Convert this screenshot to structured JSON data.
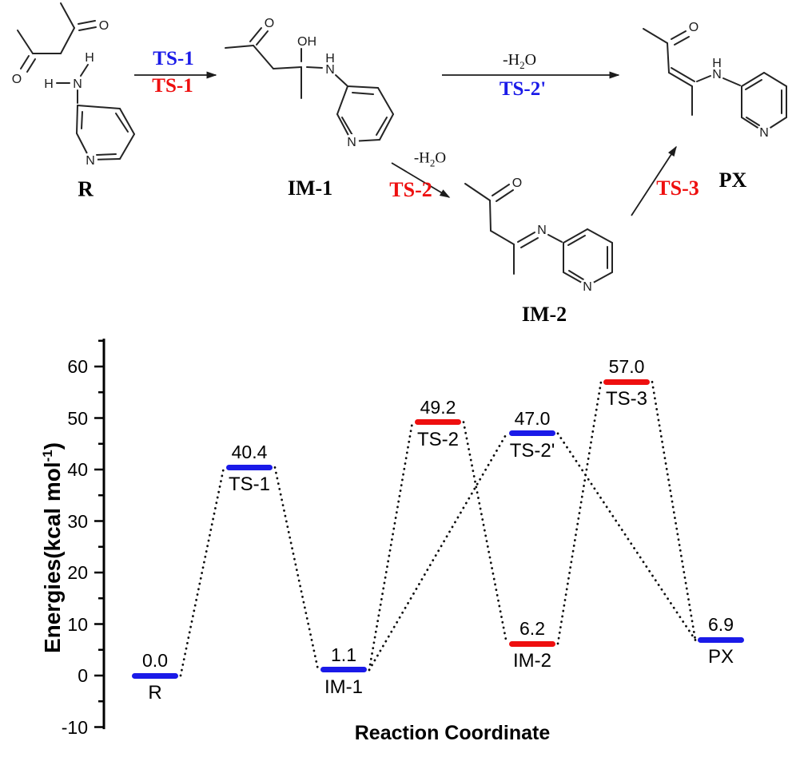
{
  "colors": {
    "blue": "#1a1ae8",
    "red": "#ee0f0f",
    "black": "#000000"
  },
  "scheme": {
    "structures": {
      "r": {
        "label": "R",
        "atoms": {
          "o_top": "O",
          "o_left": "O",
          "h_top": "H",
          "h_left": "H",
          "n_amine": "N",
          "n_ring": "N"
        }
      },
      "im1": {
        "label": "IM-1",
        "atoms": {
          "o": "O",
          "oh": "OH",
          "h": "H",
          "n_amine": "N",
          "n_ring": "N"
        }
      },
      "im2": {
        "label": "IM-2",
        "atoms": {
          "o": "O",
          "n_imine": "N",
          "n_ring": "N"
        }
      },
      "px": {
        "label": "PX",
        "atoms": {
          "o": "O",
          "h": "H",
          "n_amine": "N",
          "n_ring": "N"
        }
      }
    },
    "arrows": {
      "step1": {
        "top": "TS-1",
        "bottom": "TS-1"
      },
      "step2": {
        "water_prefix": "-H",
        "water_sub": "2",
        "water_suffix": "O",
        "bottom": "TS-2'"
      },
      "step2b": {
        "water_prefix": "-H",
        "water_sub": "2",
        "water_suffix": "O",
        "ts": "TS-2"
      },
      "step3": {
        "ts": "TS-3"
      }
    }
  },
  "chart_data": {
    "type": "line",
    "subtype": "reaction-energy-profile",
    "title": "",
    "xlabel": "Reaction Coordinate",
    "ylabel": "Energies(kcal mol-1)",
    "ylabel_prefix": "Energies(kcal mol",
    "ylabel_sup": "-1",
    "ylabel_suffix": ")",
    "ylim": [
      -10,
      65
    ],
    "yticks_major": [
      60,
      50,
      40,
      30,
      20,
      10,
      0,
      -10
    ],
    "yticks_minor": [
      65,
      55,
      45,
      35,
      25,
      15,
      5,
      -5
    ],
    "grid": false,
    "legend": null,
    "levels": [
      {
        "name": "R",
        "energy": 0.0,
        "label": "0.0",
        "color": "blue",
        "slot": 0
      },
      {
        "name": "TS-1",
        "energy": 40.4,
        "label": "40.4",
        "color": "blue",
        "slot": 1
      },
      {
        "name": "IM-1",
        "energy": 1.1,
        "label": "1.1",
        "color": "blue",
        "slot": 2
      },
      {
        "name": "TS-2",
        "energy": 49.2,
        "label": "49.2",
        "color": "red",
        "slot": 3
      },
      {
        "name": "TS-2'",
        "energy": 47.0,
        "label": "47.0",
        "color": "blue",
        "slot": 4
      },
      {
        "name": "IM-2",
        "energy": 6.2,
        "label": "6.2",
        "color": "red",
        "slot": 4
      },
      {
        "name": "TS-3",
        "energy": 57.0,
        "label": "57.0",
        "color": "red",
        "slot": 5
      },
      {
        "name": "PX",
        "energy": 6.9,
        "label": "6.9",
        "color": "blue",
        "slot": 6
      }
    ],
    "connectors": [
      [
        0,
        1
      ],
      [
        1,
        2
      ],
      [
        2,
        3
      ],
      [
        2,
        4
      ],
      [
        3,
        5
      ],
      [
        4,
        7
      ],
      [
        5,
        6
      ],
      [
        6,
        7
      ]
    ],
    "pathways": {
      "blue": [
        "R",
        "TS-1",
        "IM-1",
        "TS-2'",
        "PX"
      ],
      "red": [
        "R",
        "TS-1",
        "IM-1",
        "TS-2",
        "IM-2",
        "TS-3",
        "PX"
      ]
    }
  }
}
